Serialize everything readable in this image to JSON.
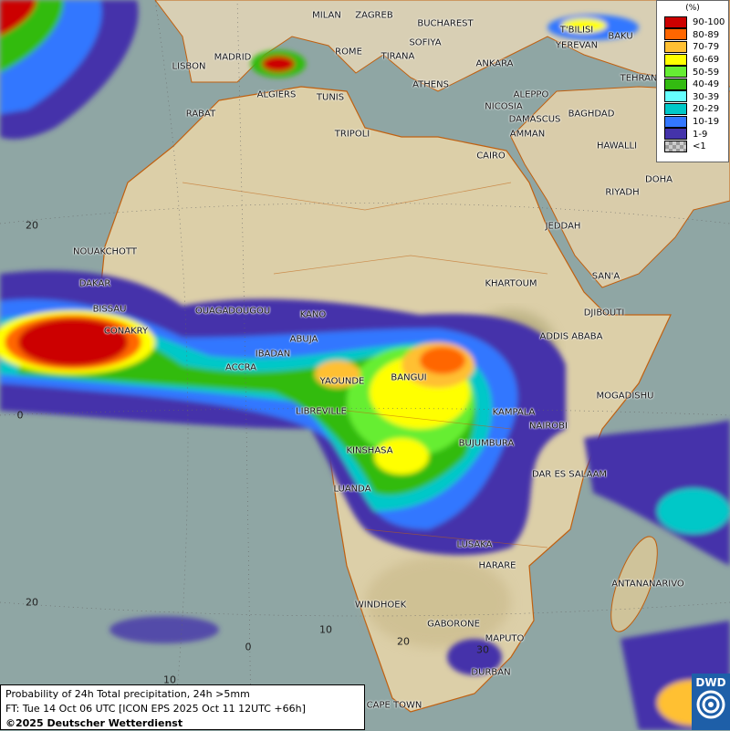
{
  "title": "Probability of 24h Total precipitation, 24h >5mm",
  "forecast_time": "FT: Tue 14 Oct 06 UTC [ICON EPS 2025 Oct 11 12UTC +66h]",
  "copyright": "©2025 Deutscher Wetterdienst",
  "logo": {
    "text": "DWD",
    "icon": "dwd-swirl-icon"
  },
  "legend": {
    "unit": "(%)",
    "items": [
      {
        "label": "90-100",
        "color": "#cc0000"
      },
      {
        "label": "80-89",
        "color": "#ff6600"
      },
      {
        "label": "70-79",
        "color": "#ffc033"
      },
      {
        "label": "60-69",
        "color": "#ffff00"
      },
      {
        "label": "50-59",
        "color": "#66ee33"
      },
      {
        "label": "40-49",
        "color": "#33bb11"
      },
      {
        "label": "30-39",
        "color": "#66ffff"
      },
      {
        "label": "20-29",
        "color": "#00c8c8"
      },
      {
        "label": "10-19",
        "color": "#3377ff"
      },
      {
        "label": "1-9",
        "color": "#4433aa"
      },
      {
        "label": "<1",
        "color": "#aaaaaa"
      }
    ]
  },
  "grid_labels": [
    "20",
    "0",
    "20",
    "10",
    "0",
    "10",
    "20",
    "30"
  ],
  "cities": [
    "MILAN",
    "ZAGREB",
    "BUCHAREST",
    "T'BILISI",
    "BAKU",
    "MADRID",
    "ROME",
    "SOFIYA",
    "YEREVAN",
    "LISBON",
    "TIRANA",
    "ANKARA",
    "TEHRAN",
    "ALGIERS",
    "TUNIS",
    "ATHENS",
    "ALEPPO",
    "RABAT",
    "NICOSIA",
    "BAGHDAD",
    "DAMASCUS",
    "AMMAN",
    "TRIPOLI",
    "CAIRO",
    "HAWALLI",
    "DOHA",
    "RIYADH",
    "JEDDAH",
    "NOUAKCHOTT",
    "KHARTOUM",
    "SAN'A",
    "DAKAR",
    "BISSAU",
    "OUAGADOUGOU",
    "KANO",
    "DJIBOUTI",
    "CONAKRY",
    "ABUJA",
    "ADDIS ABABA",
    "IBADAN",
    "ACCRA",
    "BANGUI",
    "YAOUNDE",
    "MOGADISHU",
    "LIBREVILLE",
    "KAMPALA",
    "NAIROBI",
    "BUJUMBURA",
    "KINSHASA",
    "DAR ES SALAAM",
    "LUANDA",
    "LUSAKA",
    "HARARE",
    "ANTANANARIVO",
    "WINDHOEK",
    "GABORONE",
    "MAPUTO",
    "DURBAN",
    "CAPE TOWN"
  ]
}
